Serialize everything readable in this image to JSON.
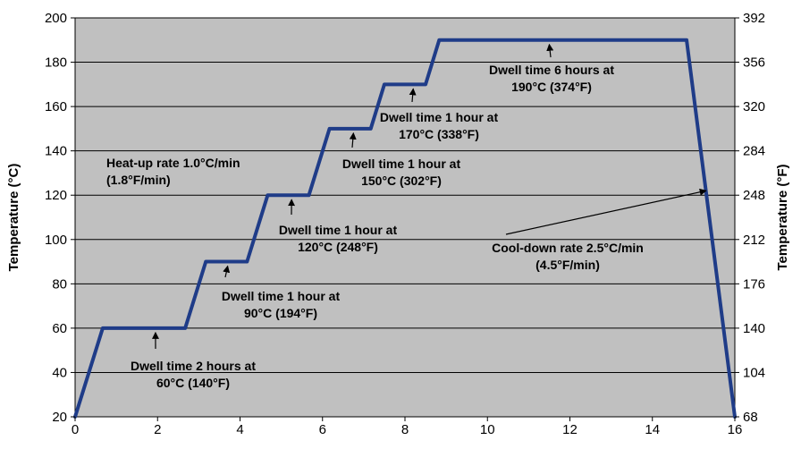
{
  "chart_data": {
    "type": "line",
    "title": "",
    "xlabel": "",
    "ylabel": "Temperature (°C)",
    "y2label": "Temperature (°F)",
    "xlim": [
      0,
      16
    ],
    "ylim": [
      20,
      200
    ],
    "y2lim": [
      68,
      392
    ],
    "x_ticks": [
      0,
      2,
      4,
      6,
      8,
      10,
      12,
      14,
      16
    ],
    "y_ticks": [
      20,
      40,
      60,
      80,
      100,
      120,
      140,
      160,
      180,
      200
    ],
    "y2_ticks": [
      68,
      104,
      140,
      176,
      212,
      248,
      284,
      320,
      356,
      392
    ],
    "grid": true,
    "plot_background": "#c0c0c0",
    "line_color": "#1f3c88",
    "series": [
      {
        "x": [
          0,
          0.67,
          2.67,
          3.17,
          4.17,
          4.67,
          5.67,
          6.17,
          7.17,
          7.5,
          8.5,
          8.83,
          14.83,
          16.0
        ],
        "y": [
          20,
          60,
          60,
          90,
          90,
          120,
          120,
          150,
          150,
          170,
          170,
          190,
          190,
          20
        ]
      }
    ],
    "annotations": [
      {
        "id": "dwell-60",
        "lines": [
          "Dwell time 2 hours at",
          "60°C (140°F)"
        ],
        "arrow_to": [
          1.95,
          60
        ]
      },
      {
        "id": "dwell-90",
        "lines": [
          "Dwell time 1 hour at",
          "90°C (194°F)"
        ],
        "arrow_to": [
          3.7,
          90
        ]
      },
      {
        "id": "dwell-120",
        "lines": [
          "Dwell time 1 hour at",
          "120°C (248°F)"
        ],
        "arrow_to": [
          5.25,
          120
        ]
      },
      {
        "id": "dwell-150",
        "lines": [
          "Dwell time 1 hour at",
          "150°C (302°F)"
        ],
        "arrow_to": [
          6.75,
          150
        ]
      },
      {
        "id": "dwell-170",
        "lines": [
          "Dwell time 1 hour at",
          "170°C (338°F)"
        ],
        "arrow_to": [
          8.2,
          170
        ]
      },
      {
        "id": "dwell-190",
        "lines": [
          "Dwell time 6 hours at",
          "190°C (374°F)"
        ],
        "arrow_to": [
          11.5,
          190
        ]
      },
      {
        "id": "heat-up",
        "lines": [
          "Heat-up rate 1.0°C/min",
          "(1.8°F/min)"
        ],
        "arrow_to": null
      },
      {
        "id": "cool-down",
        "lines": [
          "Cool-down rate 2.5°C/min",
          "(4.5°F/min)"
        ],
        "arrow_to": [
          15.3,
          122
        ]
      }
    ]
  }
}
